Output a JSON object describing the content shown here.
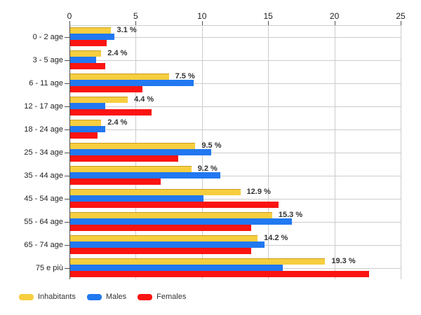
{
  "chart_data": {
    "type": "bar",
    "orientation": "horizontal",
    "title": "",
    "xlabel": "",
    "ylabel": "",
    "xlim": [
      0,
      25
    ],
    "x_ticks": [
      0,
      5,
      10,
      15,
      20,
      25
    ],
    "grid": true,
    "legend_position": "bottom-left",
    "value_label_suffix": " %",
    "categories": [
      "0 - 2 age",
      "3 - 5 age",
      "6 - 11 age",
      "12 - 17 age",
      "18 - 24 age",
      "25 - 34 age",
      "35 - 44 age",
      "45 - 54 age",
      "55 - 64 age",
      "65 - 74 age",
      "75 e più"
    ],
    "series": [
      {
        "name": "Inhabitants",
        "color": "#F7CE3F",
        "values": [
          3.1,
          2.4,
          7.5,
          4.4,
          2.4,
          9.5,
          9.2,
          12.9,
          15.3,
          14.2,
          19.3
        ],
        "labels": [
          "3.1 %",
          "2.4 %",
          "7.5 %",
          "4.4 %",
          "2.4 %",
          "9.5 %",
          "9.2 %",
          "12.9 %",
          "15.3 %",
          "14.2 %",
          "19.3 %"
        ]
      },
      {
        "name": "Males",
        "color": "#2178F0",
        "values": [
          3.4,
          2.0,
          9.4,
          2.7,
          2.7,
          10.7,
          11.4,
          10.1,
          16.8,
          14.7,
          16.1
        ]
      },
      {
        "name": "Females",
        "color": "#FB1412",
        "values": [
          2.8,
          2.7,
          5.5,
          6.2,
          2.1,
          8.2,
          6.9,
          15.8,
          13.7,
          13.7,
          22.6
        ]
      }
    ]
  },
  "colors": {
    "grid": "#cccccc",
    "axis": "#4d4d4d",
    "tick_text": "#222222",
    "value_text": "#333333",
    "background": "#ffffff"
  }
}
